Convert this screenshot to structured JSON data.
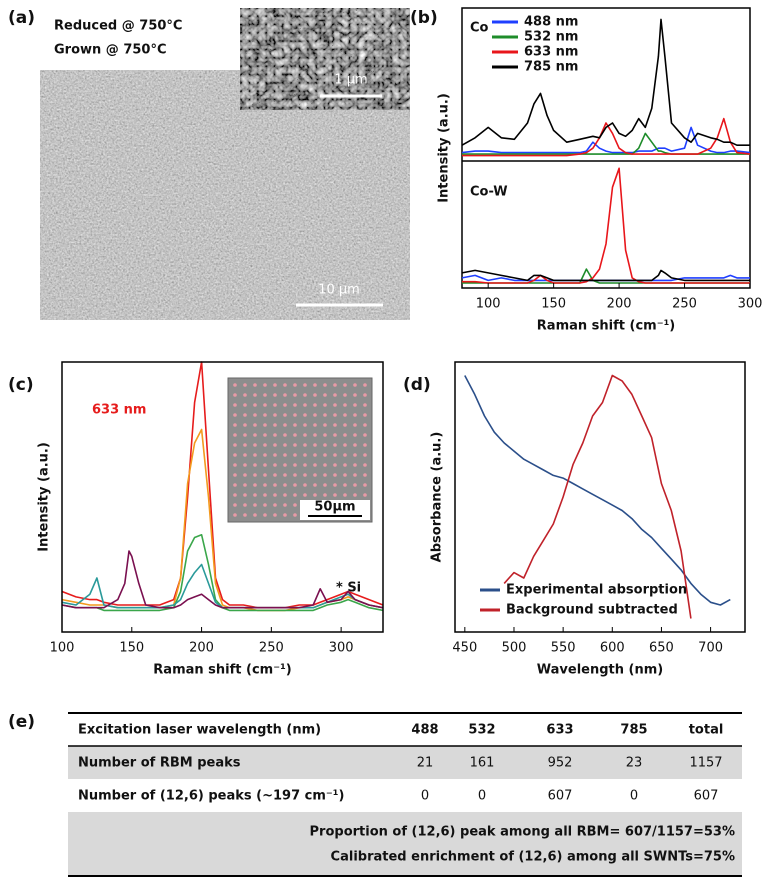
{
  "panels": {
    "a": {
      "label": "(a)",
      "text": [
        "Reduced @ 750°C",
        "Grown @ 750°C"
      ],
      "inset_scale": "1 μm",
      "scale": "10 μm"
    }
  },
  "chart_data": [
    {
      "type": "line",
      "panel_label": "(b)",
      "x": [
        80,
        90,
        100,
        110,
        120,
        130,
        135,
        140,
        145,
        150,
        160,
        170,
        175,
        180,
        185,
        190,
        195,
        200,
        205,
        210,
        215,
        220,
        225,
        230,
        232,
        235,
        240,
        250,
        255,
        260,
        270,
        275,
        280,
        285,
        290,
        300
      ],
      "xlim": [
        80,
        300
      ],
      "xticks": [
        100,
        150,
        200,
        250,
        300
      ],
      "xlabel": "Raman shift (cm⁻¹)",
      "ylabel": "Intensity (a.u.)",
      "subplots": [
        {
          "label": "Co",
          "ylim": [
            0,
            100
          ],
          "series": [
            {
              "name": "488 nm",
              "color": "#1f3fff",
              "values": [
                5,
                6,
                6,
                5,
                5,
                5,
                5,
                5,
                5,
                5,
                5,
                5,
                6,
                12,
                8,
                6,
                5,
                5,
                5,
                5,
                6,
                6,
                6,
                8,
                8,
                8,
                6,
                8,
                22,
                10,
                6,
                5,
                5,
                6,
                6,
                5
              ]
            },
            {
              "name": "532 nm",
              "color": "#1e8c2a",
              "values": [
                4,
                4,
                4,
                4,
                4,
                4,
                4,
                4,
                4,
                4,
                4,
                4,
                4,
                4,
                4,
                4,
                4,
                4,
                4,
                4,
                8,
                18,
                12,
                6,
                6,
                5,
                4,
                4,
                4,
                4,
                4,
                4,
                4,
                4,
                4,
                4
              ]
            },
            {
              "name": "633 nm",
              "color": "#e8161b",
              "values": [
                3,
                3,
                3,
                3,
                3,
                3,
                3,
                3,
                3,
                3,
                3,
                4,
                5,
                8,
                15,
                25,
                18,
                8,
                5,
                4,
                4,
                4,
                4,
                4,
                4,
                4,
                4,
                4,
                4,
                4,
                8,
                15,
                28,
                12,
                5,
                4
              ]
            },
            {
              "name": "785 nm",
              "color": "#000000",
              "values": [
                10,
                15,
                22,
                15,
                14,
                25,
                38,
                45,
                30,
                20,
                12,
                14,
                15,
                16,
                15,
                22,
                25,
                18,
                16,
                20,
                28,
                22,
                35,
                70,
                95,
                70,
                25,
                15,
                12,
                18,
                15,
                14,
                12,
                12,
                10,
                10
              ]
            }
          ]
        },
        {
          "label": "Co-W",
          "ylim": [
            0,
            100
          ],
          "series": [
            {
              "color": "#1f3fff",
              "values": [
                8,
                10,
                6,
                8,
                6,
                6,
                6,
                6,
                6,
                6,
                6,
                6,
                6,
                6,
                6,
                6,
                6,
                6,
                6,
                6,
                6,
                6,
                6,
                6,
                6,
                6,
                6,
                8,
                8,
                8,
                8,
                8,
                8,
                10,
                8,
                8
              ]
            },
            {
              "color": "#1e8c2a",
              "values": [
                4,
                4,
                4,
                4,
                4,
                4,
                4,
                4,
                4,
                4,
                4,
                4,
                15,
                6,
                4,
                4,
                4,
                4,
                4,
                4,
                4,
                4,
                4,
                4,
                4,
                4,
                4,
                4,
                4,
                4,
                4,
                4,
                4,
                4,
                4,
                4
              ]
            },
            {
              "color": "#e8161b",
              "values": [
                5,
                5,
                4,
                4,
                4,
                4,
                6,
                10,
                6,
                4,
                4,
                4,
                5,
                8,
                15,
                35,
                80,
                95,
                30,
                8,
                5,
                4,
                4,
                4,
                4,
                4,
                4,
                4,
                4,
                4,
                4,
                4,
                4,
                4,
                4,
                4
              ]
            },
            {
              "color": "#000000",
              "values": [
                12,
                14,
                12,
                10,
                8,
                6,
                10,
                10,
                8,
                6,
                6,
                6,
                6,
                6,
                6,
                6,
                6,
                6,
                6,
                6,
                6,
                6,
                6,
                10,
                14,
                12,
                8,
                6,
                6,
                6,
                6,
                6,
                6,
                6,
                6,
                6
              ]
            }
          ]
        }
      ]
    },
    {
      "type": "line",
      "panel_label": "(c)",
      "x": [
        100,
        110,
        120,
        125,
        130,
        140,
        145,
        148,
        150,
        155,
        160,
        170,
        180,
        185,
        190,
        195,
        200,
        205,
        210,
        215,
        220,
        230,
        240,
        250,
        260,
        270,
        280,
        285,
        290,
        300,
        305,
        310,
        320,
        330
      ],
      "xlim": [
        100,
        330
      ],
      "ylim": [
        0,
        100
      ],
      "xticks": [
        100,
        150,
        200,
        250,
        300
      ],
      "xlabel": "Raman shift (cm⁻¹)",
      "ylabel": "Intensity (a.u.)",
      "annotations": [
        "633 nm",
        "* Si"
      ],
      "inset_scale": "50μm",
      "series": [
        {
          "color": "#e61c1c",
          "values": [
            15,
            13,
            12,
            12,
            11,
            10,
            10,
            10,
            10,
            10,
            10,
            10,
            12,
            20,
            50,
            85,
            100,
            60,
            20,
            12,
            10,
            10,
            9,
            9,
            9,
            10,
            10,
            11,
            12,
            14,
            15,
            14,
            12,
            10
          ]
        },
        {
          "color": "#f39a1e",
          "values": [
            12,
            11,
            10,
            10,
            10,
            9,
            9,
            9,
            9,
            9,
            9,
            9,
            10,
            20,
            55,
            70,
            75,
            50,
            18,
            10,
            9,
            9,
            8,
            8,
            8,
            9,
            9,
            10,
            11,
            12,
            13,
            12,
            10,
            9
          ]
        },
        {
          "color": "#3aa64a",
          "values": [
            10,
            9,
            9,
            9,
            8,
            8,
            8,
            8,
            8,
            8,
            8,
            8,
            9,
            15,
            30,
            35,
            36,
            25,
            12,
            9,
            8,
            8,
            8,
            8,
            8,
            8,
            8,
            9,
            10,
            11,
            12,
            11,
            9,
            8
          ]
        },
        {
          "color": "#2a9a9a",
          "values": [
            11,
            10,
            14,
            20,
            10,
            9,
            9,
            9,
            9,
            9,
            9,
            9,
            10,
            12,
            18,
            22,
            25,
            18,
            11,
            9,
            9,
            9,
            9,
            9,
            9,
            9,
            9,
            10,
            11,
            13,
            14,
            12,
            10,
            9
          ]
        },
        {
          "color": "#7a1050",
          "values": [
            10,
            9,
            9,
            9,
            9,
            12,
            18,
            30,
            28,
            18,
            10,
            9,
            9,
            10,
            12,
            13,
            14,
            12,
            10,
            9,
            9,
            9,
            9,
            9,
            9,
            9,
            10,
            16,
            11,
            12,
            15,
            12,
            10,
            9
          ]
        }
      ]
    },
    {
      "type": "line",
      "panel_label": "(d)",
      "x": [
        450,
        460,
        470,
        480,
        490,
        500,
        510,
        520,
        530,
        540,
        550,
        560,
        570,
        580,
        590,
        600,
        610,
        620,
        630,
        640,
        650,
        660,
        670,
        680,
        690,
        700,
        710,
        720
      ],
      "xlim": [
        440,
        735
      ],
      "ylim": [
        0,
        100
      ],
      "xticks": [
        450,
        500,
        550,
        600,
        650,
        700
      ],
      "xlabel": "Wavelength (nm)",
      "ylabel": "Absorbance (a.u.)",
      "legend": "lower left",
      "series": [
        {
          "name": "Experimental absorption",
          "color": "#2b4f8a",
          "values": [
            95,
            88,
            80,
            74,
            70,
            67,
            64,
            62,
            60,
            58,
            57,
            55,
            53,
            51,
            49,
            47,
            45,
            42,
            38,
            35,
            31,
            27,
            23,
            18,
            14,
            11,
            10,
            12
          ]
        },
        {
          "name": "Background subtracted",
          "color": "#c0222a",
          "values": [
            null,
            null,
            null,
            null,
            18,
            22,
            20,
            28,
            34,
            40,
            50,
            62,
            70,
            80,
            85,
            95,
            93,
            88,
            80,
            72,
            55,
            45,
            30,
            5,
            null,
            null,
            null,
            null
          ]
        }
      ]
    }
  ],
  "table": {
    "label": "(e)",
    "header": [
      "Excitation laser wavelength (nm)",
      "488",
      "532",
      "633",
      "785",
      "total"
    ],
    "rows": [
      [
        "Number of RBM peaks",
        "21",
        "161",
        "952",
        "23",
        "1157"
      ],
      [
        "Number of (12,6) peaks (~197 cm⁻¹)",
        "0",
        "0",
        "607",
        "0",
        "607"
      ]
    ],
    "notes": [
      "Proportion of (12,6) peak among all RBM= 607/1157=53%",
      "Calibrated enrichment of (12,6) among all SWNTs=75%"
    ]
  }
}
